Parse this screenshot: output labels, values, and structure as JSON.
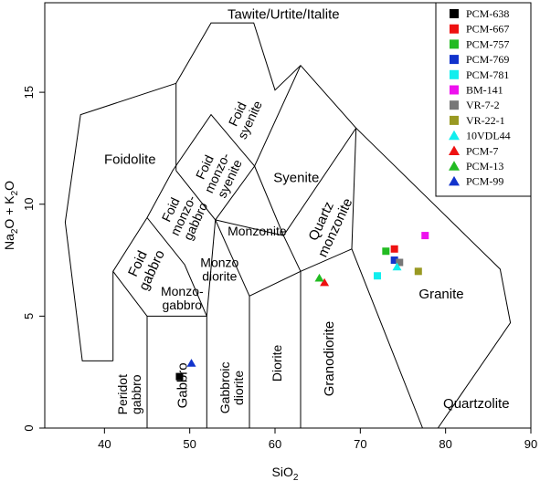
{
  "chart_data": {
    "type": "scatter",
    "title": "",
    "xlabel": "SiO",
    "xlabel_sub": "2",
    "ylabel_parts": [
      "Na",
      "2",
      "O + K",
      "2",
      "O"
    ],
    "xlim": [
      33,
      90
    ],
    "ylim": [
      0,
      19
    ],
    "x_ticks": [
      40,
      50,
      60,
      70,
      80,
      90
    ],
    "y_ticks": [
      0,
      5,
      10,
      15
    ],
    "x_tick_labels": [
      "40",
      "50",
      "60",
      "70",
      "80",
      "90"
    ],
    "y_tick_labels": [
      "0",
      "5",
      "10",
      "15"
    ],
    "grid": false,
    "legend_position": "top-right",
    "fields": [
      {
        "name": "tawite",
        "lines": [
          "Tawite/Urtite/Italite"
        ],
        "x": 61,
        "y": 18.5,
        "rotate": 0,
        "size": "big"
      },
      {
        "name": "foidolite",
        "lines": [
          "Foidolite"
        ],
        "x": 43,
        "y": 12,
        "rotate": 0,
        "size": "big"
      },
      {
        "name": "foid-syenite",
        "lines": [
          "Foid",
          "syenite"
        ],
        "x": 56.3,
        "y": 13.9,
        "rotate": -65,
        "size": "normal"
      },
      {
        "name": "foid-monzosyenite",
        "lines": [
          "Foid",
          "monzo-",
          "syenite"
        ],
        "x": 53.2,
        "y": 11.4,
        "rotate": -65,
        "size": "normal"
      },
      {
        "name": "syenite",
        "lines": [
          "Syenite"
        ],
        "x": 62.5,
        "y": 11.2,
        "rotate": 0,
        "size": "big"
      },
      {
        "name": "foid-monzogabbro",
        "lines": [
          "Foid",
          "monzo-",
          "gabbro"
        ],
        "x": 49.2,
        "y": 9.5,
        "rotate": -65,
        "size": "normal"
      },
      {
        "name": "quartz-monzonite",
        "lines": [
          "Quartz",
          "monzonite"
        ],
        "x": 66.2,
        "y": 9.1,
        "rotate": -65,
        "size": "big"
      },
      {
        "name": "monzonite",
        "lines": [
          "Monzonite"
        ],
        "x": 57.9,
        "y": 8.8,
        "rotate": 0,
        "size": "normal"
      },
      {
        "name": "foid-gabbro",
        "lines": [
          "Foid",
          "gabbro"
        ],
        "x": 44.7,
        "y": 7.2,
        "rotate": -65,
        "size": "big"
      },
      {
        "name": "monzodiorite",
        "lines": [
          "Monzo",
          "diorite"
        ],
        "x": 53.5,
        "y": 7.1,
        "rotate": 0,
        "size": "normal"
      },
      {
        "name": "monzogabbro",
        "lines": [
          "Monzo-",
          "gabbro"
        ],
        "x": 49.1,
        "y": 5.8,
        "rotate": 0,
        "size": "normal"
      },
      {
        "name": "granite",
        "lines": [
          "Granite"
        ],
        "x": 79.5,
        "y": 6.0,
        "rotate": 0,
        "size": "big"
      },
      {
        "name": "peridot-gabbro",
        "lines": [
          "Peridot",
          "gabbro"
        ],
        "x": 42.9,
        "y": 1.5,
        "rotate": -90,
        "size": "normal"
      },
      {
        "name": "gabbro",
        "lines": [
          "Gabbro"
        ],
        "x": 49.1,
        "y": 1.9,
        "rotate": -90,
        "size": "big"
      },
      {
        "name": "gabbroic-diorite",
        "lines": [
          "Gabbroic",
          "diorite"
        ],
        "x": 54.9,
        "y": 1.8,
        "rotate": -90,
        "size": "normal"
      },
      {
        "name": "diorite",
        "lines": [
          "Diorite"
        ],
        "x": 60.2,
        "y": 2.9,
        "rotate": -90,
        "size": "normal"
      },
      {
        "name": "granodiorite",
        "lines": [
          "Granodiorite"
        ],
        "x": 66.3,
        "y": 3.1,
        "rotate": -90,
        "size": "big"
      },
      {
        "name": "quartzolite",
        "lines": [
          "Quartzolite"
        ],
        "x": 83.6,
        "y": 1.1,
        "rotate": 0,
        "size": "big"
      }
    ],
    "series": [
      {
        "name": "PCM-638",
        "marker": "square",
        "color": "#000000",
        "points": [
          [
            48.8,
            2.3
          ]
        ]
      },
      {
        "name": "PCM-667",
        "marker": "square",
        "color": "#ee1111",
        "points": [
          [
            74.0,
            8.0
          ]
        ]
      },
      {
        "name": "PCM-757",
        "marker": "square",
        "color": "#22bb22",
        "points": [
          [
            73.0,
            7.9
          ]
        ]
      },
      {
        "name": "PCM-769",
        "marker": "square",
        "color": "#1133cc",
        "points": [
          [
            74.0,
            7.5
          ]
        ]
      },
      {
        "name": "PCM-781",
        "marker": "square",
        "color": "#11eeee",
        "points": [
          [
            72.0,
            6.8
          ]
        ]
      },
      {
        "name": "BM-141",
        "marker": "square",
        "color": "#ee11ee",
        "points": [
          [
            77.6,
            8.6
          ]
        ]
      },
      {
        "name": "VR-7-2",
        "marker": "square",
        "color": "#777777",
        "points": [
          [
            74.6,
            7.4
          ]
        ]
      },
      {
        "name": "VR-22-1",
        "marker": "square",
        "color": "#999922",
        "points": [
          [
            76.8,
            7.0
          ]
        ]
      },
      {
        "name": "10VDL44",
        "marker": "triangle",
        "color": "#11eeee",
        "points": [
          [
            74.3,
            7.2
          ]
        ]
      },
      {
        "name": "PCM-7",
        "marker": "triangle",
        "color": "#ee1111",
        "points": [
          [
            65.8,
            6.5
          ]
        ]
      },
      {
        "name": "PCM-13",
        "marker": "triangle",
        "color": "#22bb22",
        "points": [
          [
            65.2,
            6.7
          ]
        ]
      },
      {
        "name": "PCM-99",
        "marker": "triangle",
        "color": "#1133cc",
        "points": [
          [
            50.2,
            2.9
          ]
        ]
      }
    ]
  }
}
